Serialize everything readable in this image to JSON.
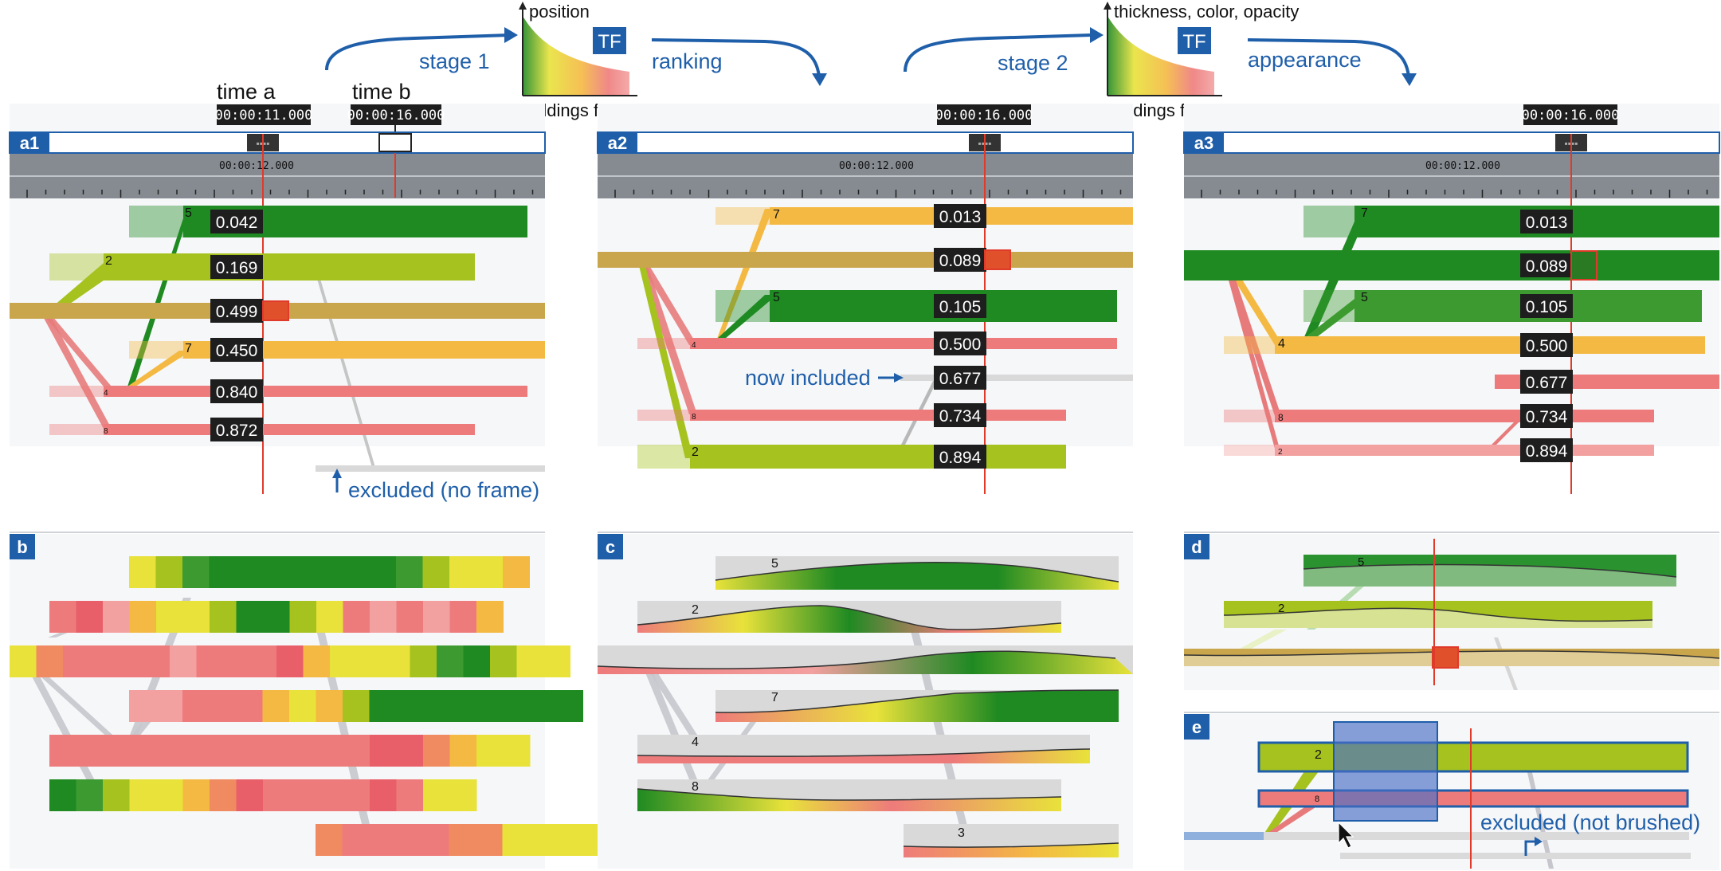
{
  "flow": {
    "stage1": "stage 1",
    "ranking": "ranking",
    "stage2": "stage 2",
    "appearance": "appearance",
    "tf1_y": "position",
    "tf2_y": "thickness, color, opacity",
    "tf_x": "buildings flooded [%]",
    "tf_badge": "TF"
  },
  "times": {
    "time_a_label": "time a",
    "time_b_label": "time b",
    "time_a": "00:00:11.000",
    "time_b": "00:00:16.000",
    "cursor_center": "00:00:12.000"
  },
  "panels": {
    "a1": {
      "tag": "a1",
      "annotation": "excluded (no frame)"
    },
    "a2": {
      "tag": "a2",
      "annotation": "now included"
    },
    "a3": {
      "tag": "a3"
    },
    "b": {
      "tag": "b"
    },
    "c": {
      "tag": "c"
    },
    "d": {
      "tag": "d"
    },
    "e": {
      "tag": "e",
      "annotation": "excluded (not brushed)"
    }
  },
  "a1_rows": [
    {
      "id": "5",
      "value": "0.042",
      "color": "#1f8a22"
    },
    {
      "id": "2",
      "value": "0.169",
      "color": "#a5c21e"
    },
    {
      "id": "",
      "value": "0.499",
      "color": "#c9a54c"
    },
    {
      "id": "7",
      "value": "0.450",
      "color": "#f4b942"
    },
    {
      "id": "4",
      "value": "0.840",
      "color": "#ee7b7b"
    },
    {
      "id": "8",
      "value": "0.872",
      "color": "#ee7b7b"
    }
  ],
  "a2_rows": [
    {
      "id": "7",
      "value": "0.013",
      "color": "#f4b942"
    },
    {
      "id": "",
      "value": "0.089",
      "color": "#c9a54c"
    },
    {
      "id": "5",
      "value": "0.105",
      "color": "#1f8a22"
    },
    {
      "id": "4",
      "value": "0.500",
      "color": "#ee7b7b"
    },
    {
      "id": "",
      "value": "0.677",
      "color": "#d9d9d9"
    },
    {
      "id": "8",
      "value": "0.734",
      "color": "#ee7b7b"
    },
    {
      "id": "2",
      "value": "0.894",
      "color": "#a5c21e"
    }
  ],
  "a3_rows": [
    {
      "id": "7",
      "value": "0.013",
      "color": "#1f8a22"
    },
    {
      "id": "",
      "value": "0.089",
      "color": "#1f8a22"
    },
    {
      "id": "5",
      "value": "0.105",
      "color": "#3d9a30"
    },
    {
      "id": "4",
      "value": "0.500",
      "color": "#f4b942"
    },
    {
      "id": "",
      "value": "0.677",
      "color": "#ee7b7b"
    },
    {
      "id": "8",
      "value": "0.734",
      "color": "#ee7b7b"
    },
    {
      "id": "2",
      "value": "0.894",
      "color": "#f3a0a0"
    }
  ],
  "c_labels": [
    "5",
    "2",
    "7",
    "4",
    "8",
    "3"
  ],
  "d_labels": [
    "5",
    "2"
  ],
  "e_labels": [
    "2",
    "8"
  ],
  "colors": {
    "accent_blue": "#1f5faa",
    "cursor_red": "#e03a2a",
    "timeline_gray": "#868b92",
    "green": "#1f8a22",
    "yellow_green": "#a5c21e",
    "orange": "#f4b942",
    "pink": "#ee7b7b",
    "tan": "#c9a54c"
  }
}
